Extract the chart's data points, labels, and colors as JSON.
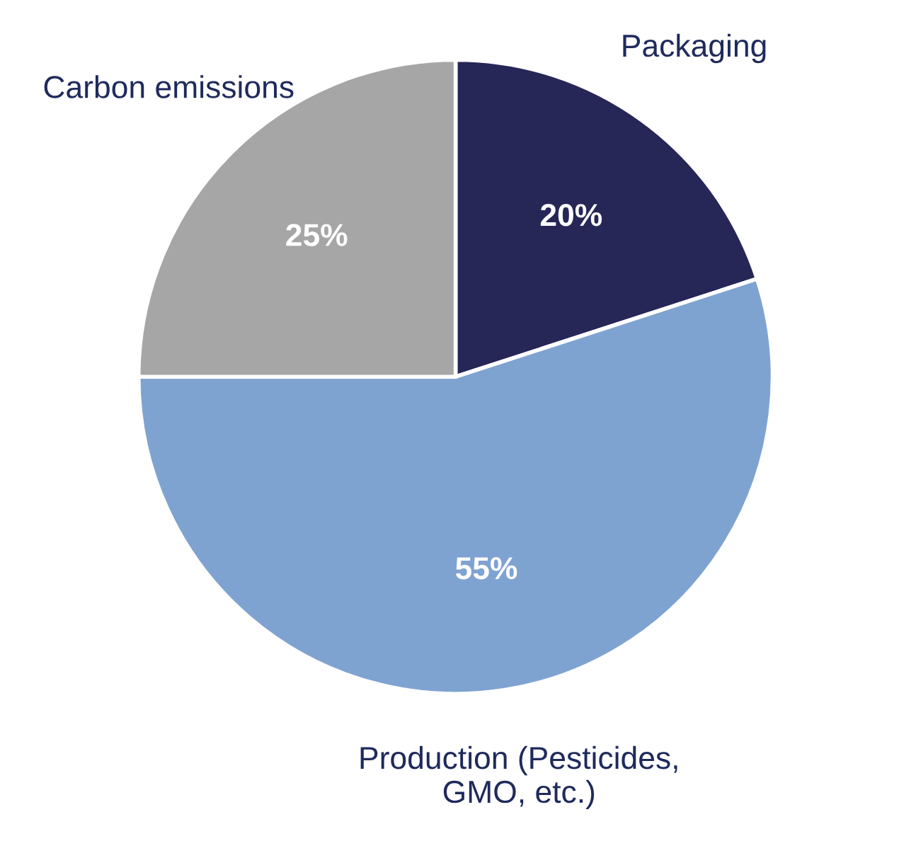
{
  "chart_data": {
    "type": "pie",
    "categories": [
      "Packaging",
      "Production (Pesticides,\nGMO, etc.)",
      "Carbon emissions"
    ],
    "values": [
      20,
      55,
      25
    ],
    "value_labels": [
      "20%",
      "55%",
      "25%"
    ],
    "colors": [
      "#262657",
      "#7fa3d1",
      "#a6a6a6"
    ],
    "legend": false
  }
}
